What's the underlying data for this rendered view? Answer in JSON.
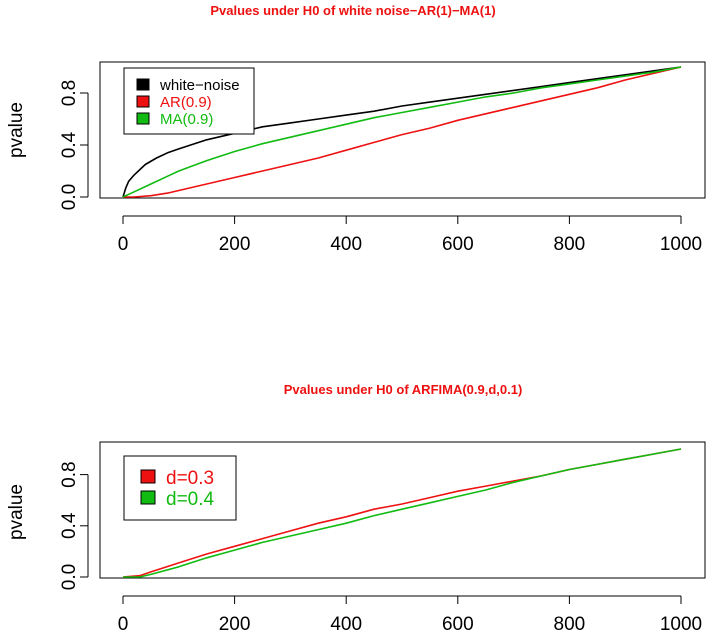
{
  "colors": {
    "white_noise": "#000000",
    "red": "#ee1111",
    "green": "#11bb11"
  },
  "chart_data": [
    {
      "type": "line",
      "title": "Pvalues under H0 of white noise−AR(1)−MA(1)",
      "xlabel": "",
      "ylabel": "pvalue",
      "xlim": [
        0,
        1000
      ],
      "ylim": [
        0,
        1
      ],
      "xticks": [
        "0",
        "200",
        "400",
        "600",
        "800",
        "1000"
      ],
      "yticks": [
        "0.0",
        "0.4",
        "0.8"
      ],
      "legend_position": "top-left",
      "grid": false,
      "series": [
        {
          "name": "white−noise",
          "color": "#000000",
          "x": [
            0,
            5,
            10,
            20,
            40,
            60,
            80,
            100,
            150,
            200,
            250,
            300,
            350,
            400,
            450,
            500,
            550,
            600,
            650,
            700,
            750,
            800,
            850,
            900,
            950,
            1000
          ],
          "y": [
            0,
            0.07,
            0.12,
            0.17,
            0.25,
            0.3,
            0.34,
            0.37,
            0.44,
            0.49,
            0.54,
            0.57,
            0.6,
            0.63,
            0.66,
            0.7,
            0.73,
            0.76,
            0.79,
            0.82,
            0.85,
            0.88,
            0.91,
            0.94,
            0.97,
            1.0
          ]
        },
        {
          "name": "AR(0.9)",
          "color": "#ee1111",
          "x": [
            0,
            20,
            50,
            80,
            100,
            150,
            200,
            250,
            300,
            350,
            400,
            450,
            500,
            550,
            600,
            650,
            700,
            750,
            800,
            850,
            900,
            950,
            1000
          ],
          "y": [
            0,
            0.0,
            0.01,
            0.03,
            0.05,
            0.1,
            0.15,
            0.2,
            0.25,
            0.3,
            0.36,
            0.42,
            0.48,
            0.53,
            0.59,
            0.64,
            0.69,
            0.74,
            0.79,
            0.84,
            0.9,
            0.95,
            1.0
          ]
        },
        {
          "name": "MA(0.9)",
          "color": "#11bb11",
          "x": [
            0,
            20,
            50,
            80,
            100,
            150,
            200,
            250,
            300,
            350,
            400,
            450,
            500,
            550,
            600,
            650,
            700,
            750,
            800,
            850,
            900,
            950,
            1000
          ],
          "y": [
            0,
            0.04,
            0.1,
            0.16,
            0.2,
            0.28,
            0.35,
            0.41,
            0.46,
            0.51,
            0.56,
            0.61,
            0.65,
            0.69,
            0.73,
            0.77,
            0.8,
            0.84,
            0.87,
            0.9,
            0.93,
            0.96,
            1.0
          ]
        }
      ]
    },
    {
      "type": "line",
      "title": "Pvalues under H0 of ARFIMA(0.9,d,0.1)",
      "xlabel": "",
      "ylabel": "pvalue",
      "xlim": [
        0,
        1000
      ],
      "ylim": [
        0,
        1
      ],
      "xticks": [
        "0",
        "200",
        "400",
        "600",
        "800",
        "1000"
      ],
      "yticks": [
        "0.0",
        "0.4",
        "0.8"
      ],
      "legend_position": "top-left",
      "grid": false,
      "series": [
        {
          "name": "d=0.3",
          "color": "#ee1111",
          "x": [
            0,
            30,
            50,
            100,
            150,
            200,
            250,
            300,
            350,
            400,
            450,
            500,
            550,
            600,
            650,
            700,
            750,
            800,
            850,
            900,
            950,
            1000
          ],
          "y": [
            0,
            0.01,
            0.04,
            0.11,
            0.18,
            0.24,
            0.3,
            0.36,
            0.42,
            0.47,
            0.53,
            0.57,
            0.62,
            0.67,
            0.71,
            0.75,
            0.79,
            0.84,
            0.88,
            0.92,
            0.96,
            1.0
          ]
        },
        {
          "name": "d=0.4",
          "color": "#11bb11",
          "x": [
            0,
            30,
            50,
            100,
            150,
            200,
            250,
            300,
            350,
            400,
            450,
            500,
            550,
            600,
            650,
            700,
            750,
            800,
            850,
            900,
            950,
            1000
          ],
          "y": [
            0,
            0.0,
            0.02,
            0.08,
            0.15,
            0.21,
            0.27,
            0.32,
            0.37,
            0.42,
            0.48,
            0.53,
            0.58,
            0.63,
            0.68,
            0.74,
            0.79,
            0.84,
            0.88,
            0.92,
            0.96,
            1.0
          ]
        }
      ]
    }
  ]
}
